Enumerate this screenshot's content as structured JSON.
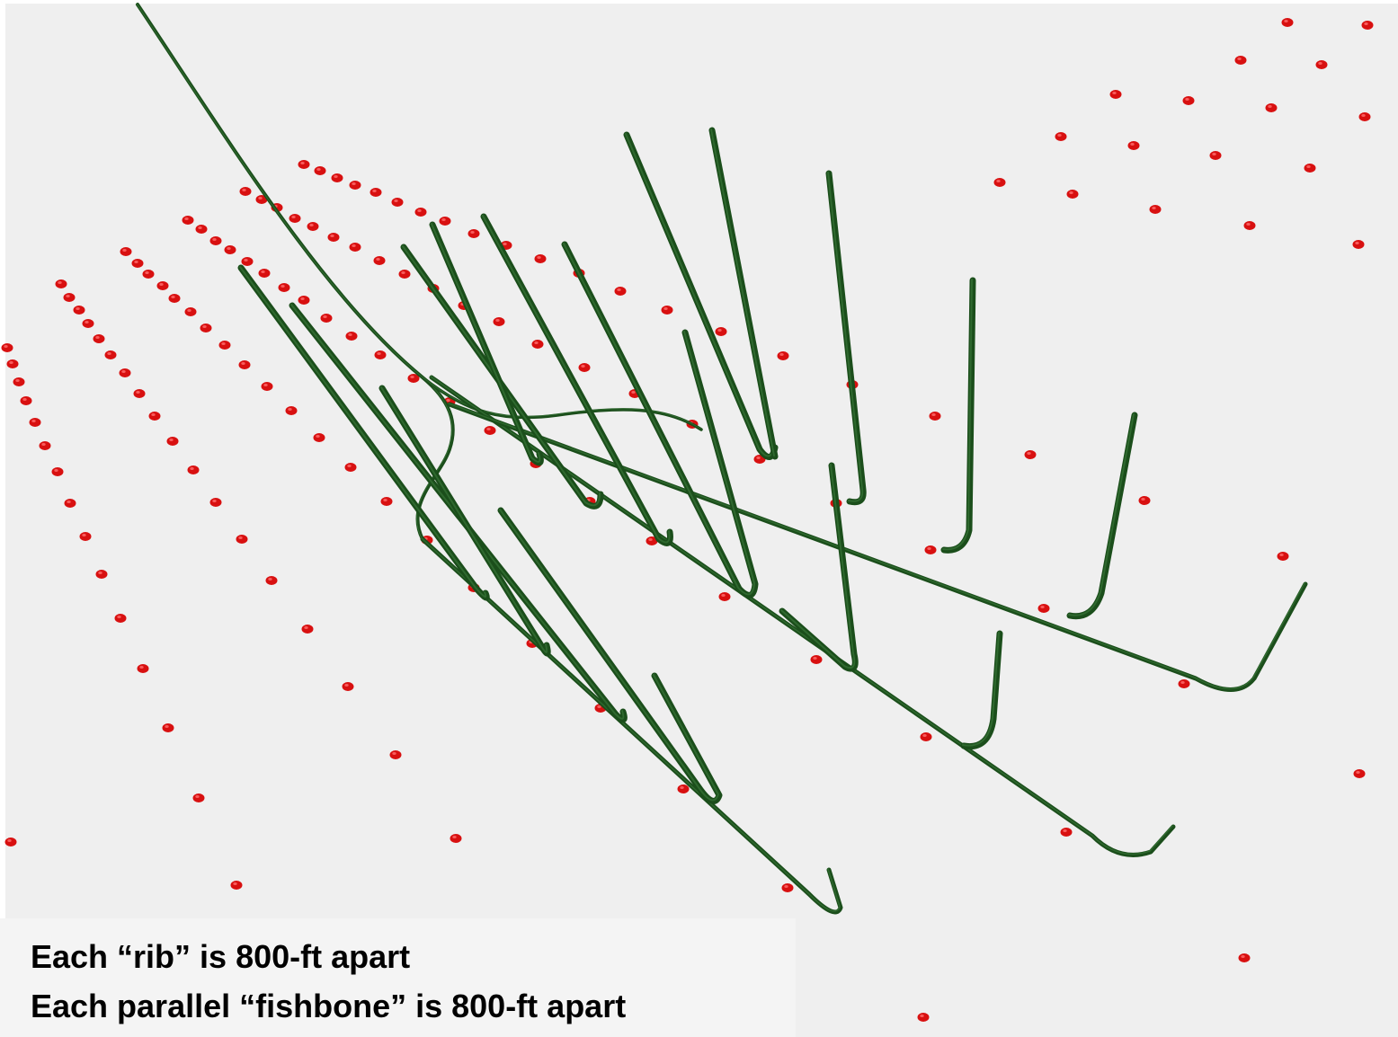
{
  "colors": {
    "background": "#efefef",
    "well_dot": "#d81010",
    "well_dot_highlight": "#ff6a6a",
    "wellbore": "#1b4e1b",
    "wellbore_highlight": "#3f7f3f",
    "caption_background": "#f4f4f4",
    "caption_text": "#000000"
  },
  "caption": {
    "line1": "Each “rib” is 800-ft apart",
    "line2": "Each parallel “fishbone” is 800-ft apart"
  },
  "legend_semantics": {
    "rib_spacing_ft": 800,
    "fishbone_spacing_ft": 800
  }
}
